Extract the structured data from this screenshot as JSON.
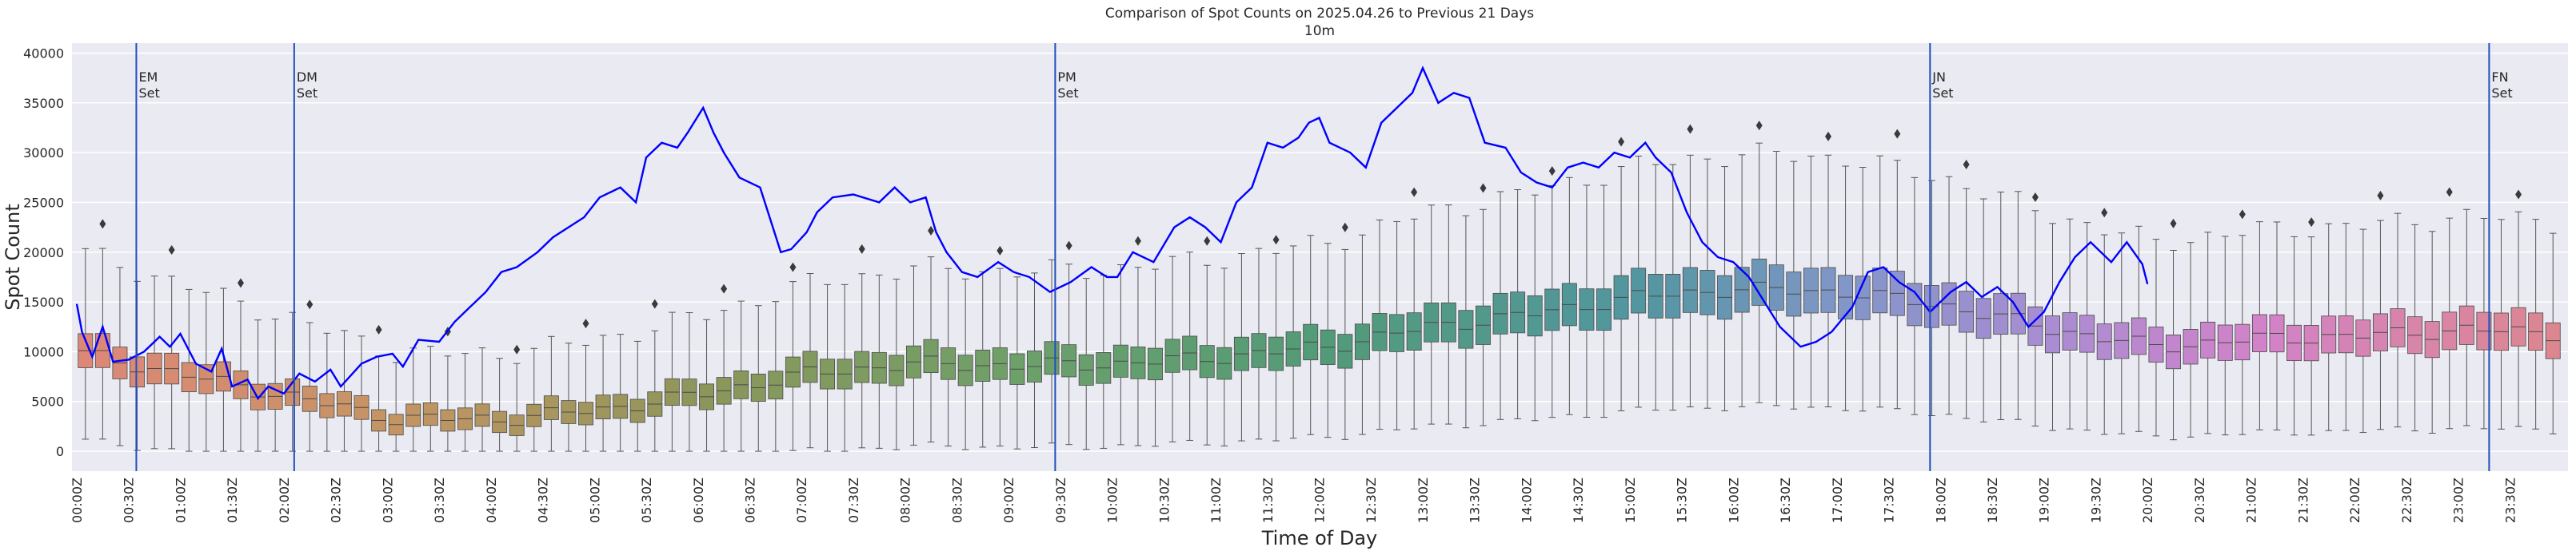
{
  "chart_data": {
    "type": "box+line",
    "title": "Comparison of Spot Counts on 2025.04.26 to Previous 21 Days",
    "subtitle": "10m",
    "xlabel": "Time of Day",
    "ylabel": "Spot Count",
    "ylim": [
      -2000,
      41000
    ],
    "yticks": [
      0,
      5000,
      10000,
      15000,
      20000,
      25000,
      30000,
      35000,
      40000
    ],
    "xtick_labels": [
      "00:00Z",
      "00:30Z",
      "01:00Z",
      "01:30Z",
      "02:00Z",
      "02:30Z",
      "03:00Z",
      "03:30Z",
      "04:00Z",
      "04:30Z",
      "05:00Z",
      "05:30Z",
      "06:00Z",
      "06:30Z",
      "07:00Z",
      "07:30Z",
      "08:00Z",
      "08:30Z",
      "09:00Z",
      "09:30Z",
      "10:00Z",
      "10:30Z",
      "11:00Z",
      "11:30Z",
      "12:00Z",
      "12:30Z",
      "13:00Z",
      "13:30Z",
      "14:00Z",
      "14:30Z",
      "15:00Z",
      "15:30Z",
      "16:00Z",
      "16:30Z",
      "17:00Z",
      "17:30Z",
      "18:00Z",
      "18:30Z",
      "19:00Z",
      "19:30Z",
      "20:00Z",
      "20:30Z",
      "21:00Z",
      "21:30Z",
      "22:00Z",
      "22:30Z",
      "23:00Z",
      "23:30Z"
    ],
    "grid": true,
    "colors": {
      "background": "#eaeaf2",
      "grid": "#ffffff",
      "line": "#0000ff",
      "vline": "#1f4fbf",
      "box_edge": "#3f3f3f"
    },
    "series": [
      {
        "kind": "box",
        "box_summary_by_hour": {
          "hours": [
            0,
            1,
            2,
            3,
            4,
            5,
            6,
            7,
            8,
            9,
            10,
            11,
            12,
            13,
            14,
            15,
            16,
            17,
            18,
            19,
            20,
            21,
            22,
            23,
            24
          ],
          "median": [
            9800,
            7600,
            5500,
            3300,
            3200,
            4200,
            5800,
            7800,
            8800,
            8600,
            8800,
            9500,
            10500,
            12500,
            13800,
            15500,
            16300,
            16000,
            14600,
            12300,
            10500,
            11300,
            11600,
            12200,
            11800
          ]
        }
      },
      {
        "kind": "line",
        "keypoints": [
          [
            0.0,
            14800
          ],
          [
            0.1,
            12000
          ],
          [
            0.3,
            9500
          ],
          [
            0.5,
            12500
          ],
          [
            0.7,
            9000
          ],
          [
            1.0,
            9200
          ],
          [
            1.3,
            10000
          ],
          [
            1.6,
            11500
          ],
          [
            1.8,
            10500
          ],
          [
            2.0,
            11800
          ],
          [
            2.3,
            8800
          ],
          [
            2.6,
            8000
          ],
          [
            2.8,
            10300
          ],
          [
            3.0,
            6500
          ],
          [
            3.3,
            7200
          ],
          [
            3.5,
            5300
          ],
          [
            3.7,
            6500
          ],
          [
            4.0,
            5800
          ],
          [
            4.3,
            7800
          ],
          [
            4.6,
            7000
          ],
          [
            4.9,
            8200
          ],
          [
            5.1,
            6500
          ],
          [
            5.5,
            8800
          ],
          [
            5.8,
            9500
          ],
          [
            6.1,
            9800
          ],
          [
            6.3,
            8500
          ],
          [
            6.6,
            11200
          ],
          [
            7.0,
            11000
          ],
          [
            7.3,
            13000
          ],
          [
            7.6,
            14500
          ],
          [
            7.9,
            16000
          ],
          [
            8.2,
            18000
          ],
          [
            8.5,
            18500
          ],
          [
            8.9,
            20000
          ],
          [
            9.2,
            21500
          ],
          [
            9.5,
            22500
          ],
          [
            9.8,
            23500
          ],
          [
            10.1,
            25500
          ],
          [
            10.3,
            26000
          ],
          [
            10.5,
            26500
          ],
          [
            10.8,
            25000
          ],
          [
            11.0,
            29500
          ],
          [
            11.3,
            31000
          ],
          [
            11.6,
            30500
          ],
          [
            11.8,
            32000
          ],
          [
            12.1,
            34500
          ],
          [
            12.3,
            32000
          ],
          [
            12.5,
            30000
          ],
          [
            12.8,
            27500
          ],
          [
            13.2,
            26500
          ],
          [
            13.6,
            20000
          ],
          [
            13.8,
            20300
          ],
          [
            14.1,
            22000
          ],
          [
            14.3,
            24000
          ],
          [
            14.6,
            25500
          ],
          [
            15.0,
            25800
          ],
          [
            15.5,
            25000
          ],
          [
            15.8,
            26500
          ],
          [
            16.1,
            25000
          ],
          [
            16.4,
            25500
          ],
          [
            16.6,
            22000
          ],
          [
            16.8,
            20000
          ],
          [
            17.1,
            18000
          ],
          [
            17.4,
            17500
          ],
          [
            17.8,
            19000
          ],
          [
            18.1,
            18000
          ],
          [
            18.4,
            17500
          ],
          [
            18.8,
            16000
          ],
          [
            19.2,
            17000
          ],
          [
            19.6,
            18500
          ],
          [
            19.9,
            17500
          ],
          [
            20.1,
            17500
          ],
          [
            20.4,
            20000
          ],
          [
            20.8,
            19000
          ],
          [
            21.2,
            22500
          ],
          [
            21.5,
            23500
          ],
          [
            21.8,
            22500
          ],
          [
            22.1,
            21000
          ],
          [
            22.4,
            25000
          ],
          [
            22.7,
            26500
          ],
          [
            23.0,
            31000
          ],
          [
            23.3,
            30500
          ],
          [
            23.6,
            31500
          ],
          [
            23.8,
            33000
          ],
          [
            24.0,
            33500
          ],
          [
            24.2,
            31000
          ],
          [
            24.6,
            30000
          ],
          [
            24.9,
            28500
          ],
          [
            25.2,
            33000
          ],
          [
            25.5,
            34500
          ],
          [
            25.8,
            36000
          ],
          [
            26.0,
            38500
          ],
          [
            26.3,
            35000
          ],
          [
            26.6,
            36000
          ],
          [
            26.9,
            35500
          ],
          [
            27.2,
            31000
          ],
          [
            27.6,
            30500
          ],
          [
            27.9,
            28000
          ],
          [
            28.2,
            27000
          ],
          [
            28.5,
            26500
          ],
          [
            28.8,
            28500
          ],
          [
            29.1,
            29000
          ],
          [
            29.4,
            28500
          ],
          [
            29.7,
            30000
          ],
          [
            30.0,
            29500
          ],
          [
            30.3,
            31000
          ],
          [
            30.5,
            29500
          ],
          [
            30.8,
            28000
          ],
          [
            31.1,
            24000
          ],
          [
            31.4,
            21000
          ],
          [
            31.7,
            19500
          ],
          [
            32.0,
            19000
          ],
          [
            32.3,
            17500
          ],
          [
            32.6,
            15000
          ],
          [
            32.9,
            12500
          ],
          [
            33.3,
            10500
          ],
          [
            33.6,
            11000
          ],
          [
            33.9,
            12000
          ],
          [
            34.3,
            14500
          ],
          [
            34.6,
            18000
          ],
          [
            34.9,
            18500
          ],
          [
            35.2,
            17000
          ],
          [
            35.5,
            16000
          ],
          [
            35.8,
            14000
          ],
          [
            36.2,
            16000
          ],
          [
            36.5,
            17000
          ],
          [
            36.8,
            15500
          ],
          [
            37.1,
            16500
          ],
          [
            37.4,
            15000
          ],
          [
            37.7,
            12500
          ],
          [
            38.0,
            14000
          ],
          [
            38.3,
            17000
          ],
          [
            38.6,
            19500
          ],
          [
            38.9,
            21000
          ],
          [
            39.3,
            19000
          ],
          [
            39.6,
            21000
          ],
          [
            39.9,
            18800
          ],
          [
            40.0,
            16800
          ]
        ]
      }
    ],
    "vlines": [
      {
        "x": 1.15,
        "label1": "EM",
        "label2": "Set"
      },
      {
        "x": 4.2,
        "label1": "DM",
        "label2": "Set"
      },
      {
        "x": 18.9,
        "label1": "PM",
        "label2": "Set"
      },
      {
        "x": 35.8,
        "label1": "JN",
        "label2": "Set"
      },
      {
        "x": 46.6,
        "label1": "FN",
        "label2": "Set"
      }
    ]
  }
}
